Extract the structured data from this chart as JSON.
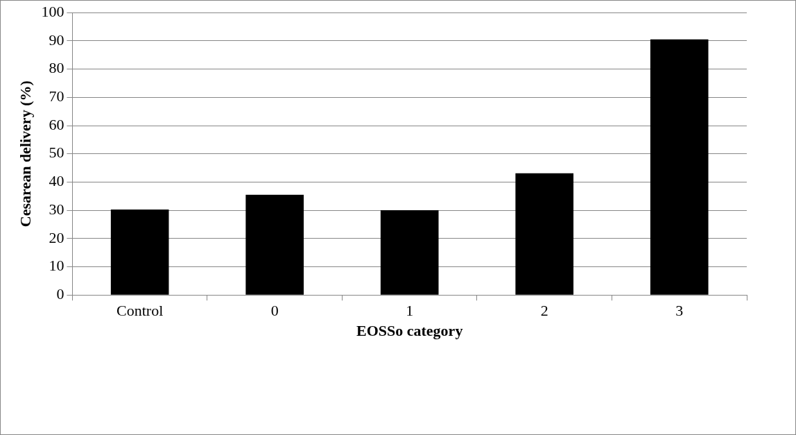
{
  "chart_data": {
    "type": "bar",
    "xlabel": "EOSSo category",
    "ylabel": "Cesarean delivery (%)",
    "categories": [
      "Control",
      "0",
      "1",
      "2",
      "3"
    ],
    "values": [
      30.3,
      35.5,
      30,
      43.1,
      90.5
    ],
    "color": "#000000",
    "ylim": [
      0,
      100
    ],
    "yticks": [
      0,
      10,
      20,
      30,
      40,
      50,
      60,
      70,
      80,
      90,
      100
    ],
    "grid": "y",
    "legend": false
  }
}
